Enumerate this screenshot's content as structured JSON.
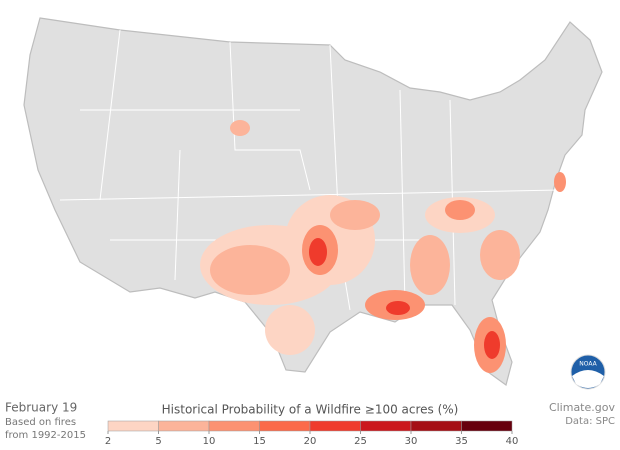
{
  "header": {
    "date": "February 19",
    "note_line1": "Based on fires",
    "note_line2": "from 1992-2015"
  },
  "credits": {
    "site": "Climate.gov",
    "source": "Data: SPC",
    "logo": "NOAA"
  },
  "legend": {
    "title": "Historical Probability of a Wildfire ≥100 acres (%)",
    "ticks": [
      2,
      5,
      10,
      15,
      20,
      25,
      30,
      35,
      40
    ],
    "colors": [
      "#fdd5c4",
      "#fcb49a",
      "#fc9272",
      "#fb6a4a",
      "#ef3b2c",
      "#cb181d",
      "#a50f15",
      "#67000d"
    ]
  }
}
